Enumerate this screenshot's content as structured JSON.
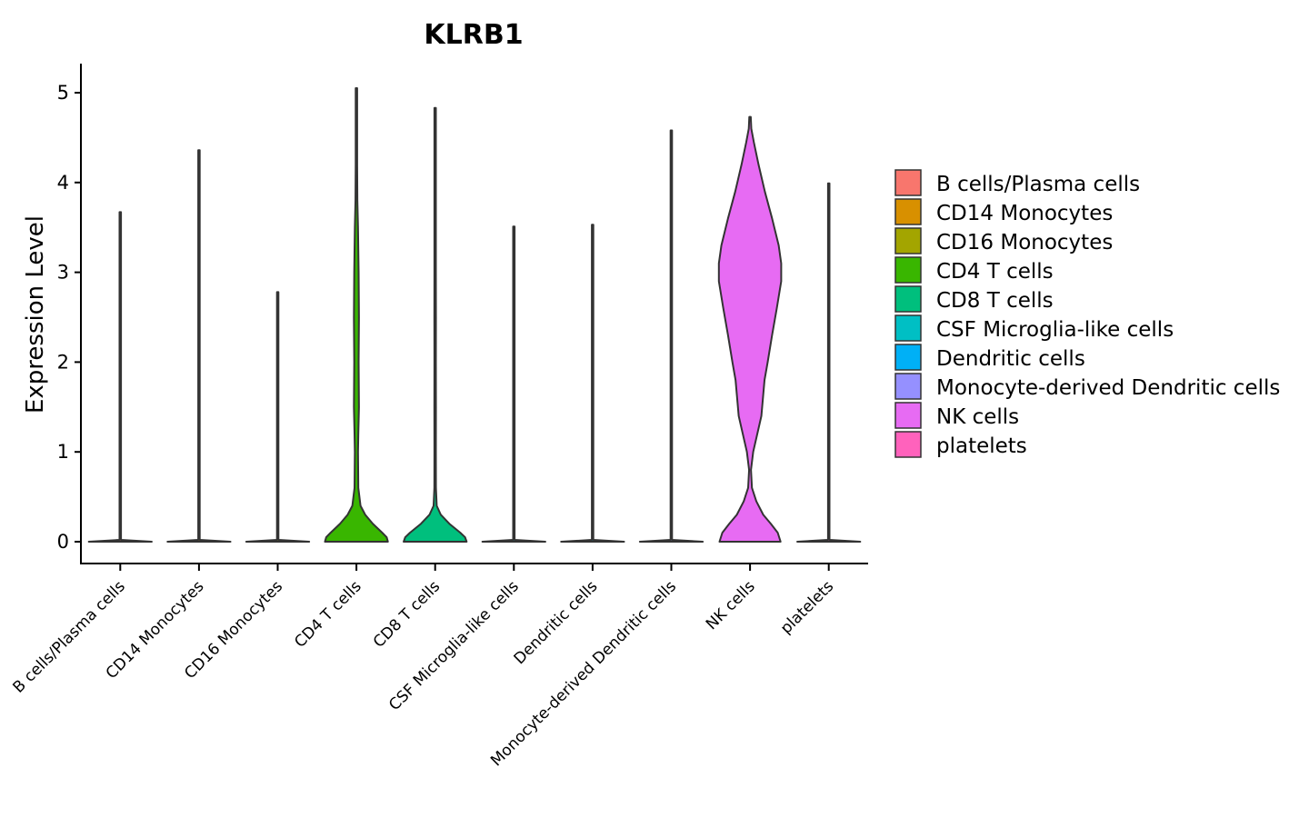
{
  "chart_data": {
    "type": "violin",
    "title": "KLRB1",
    "xlabel": "",
    "ylabel": "Expression Level",
    "ylim": [
      -0.25,
      5.3
    ],
    "yticks": [
      0,
      1,
      2,
      3,
      4,
      5
    ],
    "legend": {
      "position": "right",
      "title": ""
    },
    "categories": [
      "B cells/Plasma cells",
      "CD14 Monocytes",
      "CD16 Monocytes",
      "CD4 T cells",
      "CD8 T cells",
      "CSF Microglia-like cells",
      "Dendritic cells",
      "Monocyte-derived Dendritic cells",
      "NK cells",
      "platelets"
    ],
    "colors": [
      "#F8766D",
      "#D89000",
      "#A3A500",
      "#39B600",
      "#00BF7D",
      "#00BFC4",
      "#00B0F6",
      "#9590FF",
      "#E76BF3",
      "#FF62BC"
    ],
    "series": [
      {
        "name": "B cells/Plasma cells",
        "max": 3.67,
        "density": [
          [
            0,
            1
          ],
          [
            0.02,
            0.004
          ],
          [
            3.67,
            0.004
          ]
        ]
      },
      {
        "name": "CD14 Monocytes",
        "max": 4.36,
        "density": [
          [
            0,
            1
          ],
          [
            0.02,
            0.004
          ],
          [
            4.36,
            0.004
          ]
        ]
      },
      {
        "name": "CD16 Monocytes",
        "max": 2.78,
        "density": [
          [
            0,
            1
          ],
          [
            0.02,
            0.004
          ],
          [
            2.78,
            0.004
          ]
        ]
      },
      {
        "name": "CD4 T cells",
        "max": 5.05,
        "density": [
          [
            0,
            1
          ],
          [
            0.05,
            0.96
          ],
          [
            0.1,
            0.82
          ],
          [
            0.2,
            0.52
          ],
          [
            0.3,
            0.28
          ],
          [
            0.4,
            0.13
          ],
          [
            0.6,
            0.06
          ],
          [
            1.0,
            0.05
          ],
          [
            1.2,
            0.06
          ],
          [
            1.5,
            0.08
          ],
          [
            2.0,
            0.07
          ],
          [
            2.5,
            0.08
          ],
          [
            3.0,
            0.07
          ],
          [
            3.5,
            0.05
          ],
          [
            3.8,
            0.03
          ],
          [
            4.2,
            0.006
          ],
          [
            5.05,
            0.004
          ]
        ]
      },
      {
        "name": "CD8 T cells",
        "max": 4.83,
        "density": [
          [
            0,
            1
          ],
          [
            0.05,
            0.95
          ],
          [
            0.1,
            0.8
          ],
          [
            0.2,
            0.45
          ],
          [
            0.3,
            0.18
          ],
          [
            0.4,
            0.05
          ],
          [
            0.6,
            0.025
          ],
          [
            1.0,
            0.02
          ],
          [
            1.5,
            0.025
          ],
          [
            2.0,
            0.022
          ],
          [
            2.5,
            0.025
          ],
          [
            3.0,
            0.02
          ],
          [
            3.5,
            0.012
          ],
          [
            4.0,
            0.006
          ],
          [
            4.83,
            0.003
          ]
        ]
      },
      {
        "name": "CSF Microglia-like cells",
        "max": 3.51,
        "density": [
          [
            0,
            1
          ],
          [
            0.02,
            0.004
          ],
          [
            3.51,
            0.004
          ]
        ]
      },
      {
        "name": "Dendritic cells",
        "max": 3.53,
        "density": [
          [
            0,
            1
          ],
          [
            0.02,
            0.004
          ],
          [
            3.53,
            0.004
          ]
        ]
      },
      {
        "name": "Monocyte-derived Dendritic cells",
        "max": 4.58,
        "density": [
          [
            0,
            1
          ],
          [
            0.02,
            0.004
          ],
          [
            4.58,
            0.004
          ]
        ]
      },
      {
        "name": "NK cells",
        "max": 4.73,
        "density": [
          [
            0,
            0.97
          ],
          [
            0.1,
            0.88
          ],
          [
            0.2,
            0.66
          ],
          [
            0.3,
            0.42
          ],
          [
            0.45,
            0.2
          ],
          [
            0.6,
            0.06
          ],
          [
            0.8,
            0.03
          ],
          [
            1.0,
            0.1
          ],
          [
            1.2,
            0.23
          ],
          [
            1.4,
            0.36
          ],
          [
            1.6,
            0.41
          ],
          [
            1.8,
            0.46
          ],
          [
            2.0,
            0.56
          ],
          [
            2.3,
            0.7
          ],
          [
            2.6,
            0.85
          ],
          [
            2.9,
            0.99
          ],
          [
            3.1,
            0.99
          ],
          [
            3.3,
            0.91
          ],
          [
            3.6,
            0.7
          ],
          [
            3.9,
            0.47
          ],
          [
            4.2,
            0.27
          ],
          [
            4.45,
            0.12
          ],
          [
            4.6,
            0.04
          ],
          [
            4.73,
            0.005
          ]
        ]
      },
      {
        "name": "platelets",
        "max": 3.99,
        "density": [
          [
            0,
            1
          ],
          [
            0.02,
            0.004
          ],
          [
            3.99,
            0.004
          ]
        ]
      }
    ]
  }
}
